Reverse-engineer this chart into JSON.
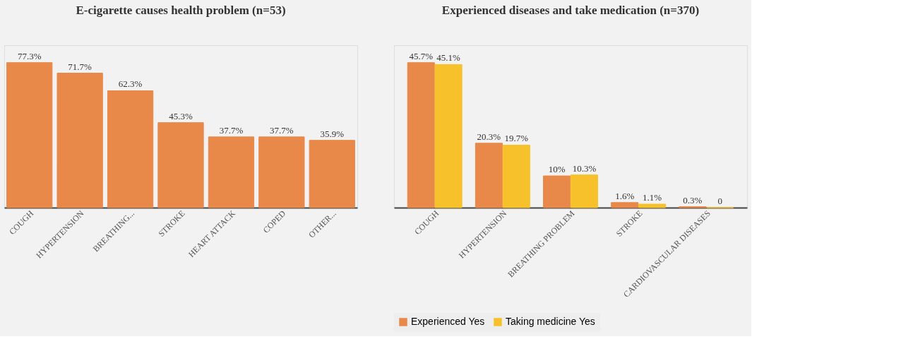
{
  "chart_data": [
    {
      "type": "bar",
      "title": "E-cigarette causes health problem (n=53)",
      "categories": [
        "COUGH",
        "HYPERTENSION",
        "BREATHING...",
        "STROKE",
        "HEART ATTACK",
        "COPED",
        "OTHER..."
      ],
      "series": [
        {
          "color": "#e8894a",
          "values": [
            77.3,
            71.7,
            62.3,
            45.3,
            37.7,
            37.7,
            35.9
          ],
          "value_labels": [
            "77.3%",
            "71.7%",
            "62.3%",
            "45.3%",
            "37.7%",
            "37.7%",
            "35.9%"
          ]
        }
      ],
      "legend": false
    },
    {
      "type": "bar",
      "title": "Experienced diseases and take medication (n=370)",
      "categories": [
        "COUGH",
        "HYPERTENSION",
        "BREATHING PROBLEM",
        "STROKE",
        "CARDIOVASCULAR  DISEASES"
      ],
      "series": [
        {
          "name": "Experienced Yes",
          "color": "#e8894a",
          "values": [
            45.7,
            20.3,
            10,
            1.6,
            0.3
          ],
          "value_labels": [
            "45.7%",
            "20.3%",
            "10%",
            "1.6%",
            "0.3%"
          ]
        },
        {
          "name": "Taking medicine Yes",
          "color": "#f7c12b",
          "values": [
            45.1,
            19.7,
            10.3,
            1.1,
            0
          ],
          "value_labels": [
            "45.1%",
            "19.7%",
            "10.3%",
            "1.1%",
            "0"
          ]
        }
      ],
      "legend": "bottom"
    }
  ]
}
